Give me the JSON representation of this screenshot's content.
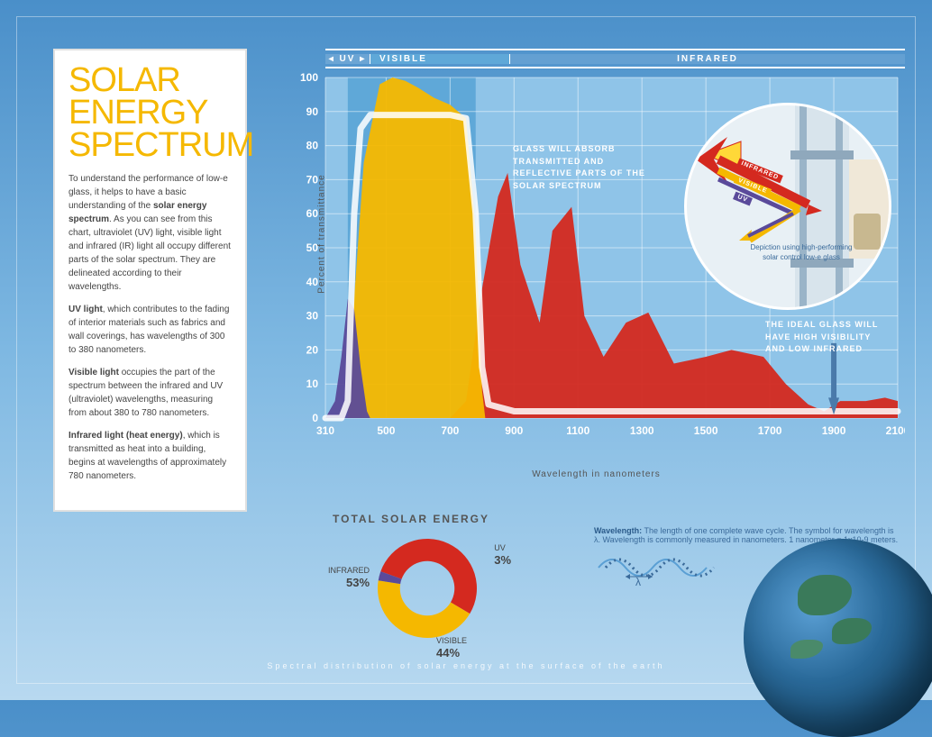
{
  "title": {
    "line1": "SOLAR",
    "line2": "ENERGY",
    "line3": "SPECTRUM",
    "color": "#f5b800",
    "fontsize": 38
  },
  "sidebar_paragraphs": [
    "To understand the performance of low-e glass, it helps to have a basic understanding of the <strong>solar energy spectrum</strong>. As you can see from this chart, ultraviolet (UV) light, visible light and infrared (IR) light all occupy different parts of the solar spectrum. They are delineated according to their wavelengths.",
    "<strong>UV light</strong>, which contributes to the fading of interior materials such as fabrics and wall coverings, has wavelengths of 300 to 380 nanometers.",
    "<strong>Visible light</strong> occupies the part of the spectrum between the infrared and UV (ultraviolet) wavelengths, measuring from about 380 to 780 nanometers.",
    "<strong>Infrared light (heat energy)</strong>, which is transmitted as heat into a building, begins at wavelengths of approximately 780 nanometers."
  ],
  "spectrum_bands": {
    "uv": "UV",
    "visible": "VISIBLE",
    "infrared": "INFRARED"
  },
  "chart": {
    "type": "area",
    "y_label": "Percent of transmittance",
    "x_label": "Wavelength in nanometers",
    "ylim": [
      0,
      100
    ],
    "ytick_step": 10,
    "xlim": [
      310,
      2100
    ],
    "xticks": [
      310,
      500,
      700,
      900,
      1100,
      1300,
      1500,
      1700,
      1900,
      2100
    ],
    "grid_color": "#ffffff",
    "grid_opacity": 0.5,
    "plot_bg": "#8fc4e8",
    "visible_band_bg": "#5fa8d8",
    "uv_series": {
      "color": "#5a4a9a",
      "opacity": 0.95,
      "points": [
        [
          310,
          0
        ],
        [
          340,
          5
        ],
        [
          360,
          18
        ],
        [
          380,
          35
        ],
        [
          400,
          32
        ],
        [
          420,
          15
        ],
        [
          440,
          2
        ],
        [
          450,
          0
        ]
      ]
    },
    "visible_series": {
      "color": "#f5b800",
      "opacity": 0.95,
      "points": [
        [
          380,
          0
        ],
        [
          400,
          35
        ],
        [
          430,
          75
        ],
        [
          480,
          98
        ],
        [
          520,
          100
        ],
        [
          560,
          99
        ],
        [
          600,
          97
        ],
        [
          650,
          94
        ],
        [
          700,
          92
        ],
        [
          750,
          88
        ],
        [
          780,
          55
        ],
        [
          800,
          8
        ],
        [
          810,
          0
        ]
      ]
    },
    "infrared_series": {
      "color": "#d4291f",
      "opacity": 0.95,
      "points": [
        [
          700,
          0
        ],
        [
          750,
          5
        ],
        [
          800,
          38
        ],
        [
          850,
          65
        ],
        [
          880,
          72
        ],
        [
          920,
          45
        ],
        [
          980,
          28
        ],
        [
          1020,
          55
        ],
        [
          1080,
          62
        ],
        [
          1120,
          30
        ],
        [
          1180,
          18
        ],
        [
          1250,
          28
        ],
        [
          1320,
          31
        ],
        [
          1400,
          16
        ],
        [
          1500,
          18
        ],
        [
          1580,
          20
        ],
        [
          1680,
          18
        ],
        [
          1750,
          10
        ],
        [
          1820,
          4
        ],
        [
          1870,
          2
        ],
        [
          1920,
          5
        ],
        [
          2000,
          5
        ],
        [
          2060,
          6
        ],
        [
          2100,
          5
        ]
      ]
    },
    "ideal_line": {
      "color": "#ffffff",
      "width": 7,
      "opacity": 0.85,
      "points": [
        [
          310,
          0
        ],
        [
          360,
          0
        ],
        [
          380,
          5
        ],
        [
          400,
          60
        ],
        [
          420,
          85
        ],
        [
          450,
          89
        ],
        [
          500,
          89
        ],
        [
          600,
          89
        ],
        [
          700,
          89
        ],
        [
          750,
          88
        ],
        [
          780,
          60
        ],
        [
          800,
          15
        ],
        [
          820,
          4
        ],
        [
          900,
          2
        ],
        [
          1100,
          2
        ],
        [
          1500,
          2
        ],
        [
          1900,
          2
        ],
        [
          2100,
          2
        ]
      ]
    },
    "annotation1": "GLASS WILL ABSORB TRANSMITTED AND REFLECTIVE PARTS OF THE SOLAR SPECTRUM",
    "annotation2": "THE IDEAL GLASS WILL HAVE HIGH VISIBILITY AND LOW INFRARED"
  },
  "donut": {
    "title": "TOTAL SOLAR ENERGY",
    "slices": [
      {
        "label": "INFRARED",
        "value": 53,
        "color": "#d4291f"
      },
      {
        "label": "VISIBLE",
        "value": 44,
        "color": "#f5b800"
      },
      {
        "label": "UV",
        "value": 3,
        "color": "#5a4a9a"
      }
    ],
    "inner_radius": 0.55
  },
  "wavelength_def": {
    "term": "Wavelength:",
    "text": "The length of one complete wave cycle. The symbol for wavelength is λ. Wavelength is commonly measured in nanometers. 1 nanometer = 1x10-9 meters.",
    "lambda": "λ"
  },
  "inset": {
    "labels": {
      "infrared": "INFRARED",
      "visible": "VISIBLE",
      "uv": "UV"
    },
    "caption": "Depiction using high-performing solar control low-e glass",
    "colors": {
      "infrared": "#d4291f",
      "visible": "#f5b800",
      "uv": "#5a4a9a"
    }
  },
  "footer": "Spectral distribution of solar energy at the surface of the earth"
}
